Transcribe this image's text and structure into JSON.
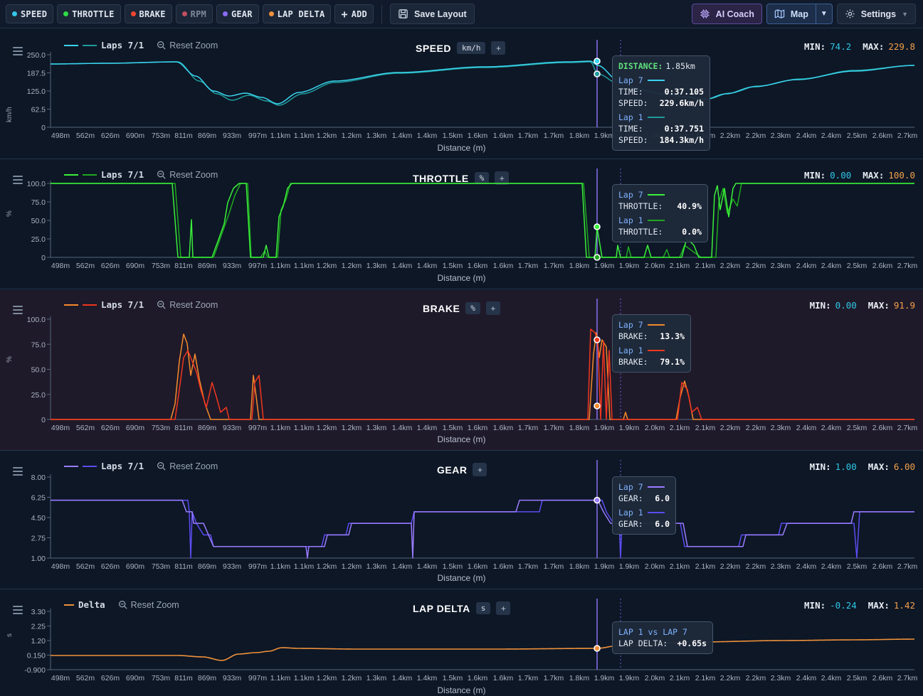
{
  "toolbar": {
    "chips": [
      {
        "id": "speed",
        "label": "SPEED",
        "color": "#33c6e8",
        "active": true
      },
      {
        "id": "throttle",
        "label": "THROTTLE",
        "color": "#2edc45",
        "active": true
      },
      {
        "id": "brake",
        "label": "BRAKE",
        "color": "#f5462f",
        "active": true
      },
      {
        "id": "rpm",
        "label": "RPM",
        "color": "#d05a6a",
        "active": false
      },
      {
        "id": "gear",
        "label": "GEAR",
        "color": "#8c6cf5",
        "active": true
      },
      {
        "id": "lapdelta",
        "label": "LAP DELTA",
        "color": "#f0913a",
        "active": true
      }
    ],
    "add_label": "ADD",
    "save_layout_label": "Save Layout",
    "ai_coach_label": "AI Coach",
    "map_label": "Map",
    "settings_label": "Settings"
  },
  "x_ticks": [
    "498m",
    "562m",
    "626m",
    "690m",
    "753m",
    "811m",
    "869m",
    "933m",
    "997m",
    "1.1km",
    "1.1km",
    "1.2km",
    "1.2km",
    "1.3km",
    "1.4km",
    "1.4km",
    "1.5km",
    "1.6km",
    "1.6km",
    "1.7km",
    "1.7km",
    "1.8km",
    "1.9km",
    "1.9km",
    "2.0km",
    "2.1km",
    "2.1km",
    "2.2km",
    "2.2km",
    "2.3km",
    "2.4km",
    "2.4km",
    "2.5km",
    "2.6km",
    "2.7km"
  ],
  "x_label": "Distance (m)",
  "reset_zoom_label": "Reset Zoom",
  "min_label": "MIN:",
  "max_label": "MAX:",
  "panels": {
    "speed": {
      "title": "SPEED",
      "unit": "km/h",
      "y_axis_label": "km/h",
      "legend": "Laps 7/1",
      "min": "74.2",
      "max": "229.8",
      "y_ticks": [
        "250.0",
        "187.5",
        "125.0",
        "62.5",
        "0"
      ],
      "tooltip": {
        "distance_label": "DISTANCE:",
        "distance": "1.85km",
        "lap_a": "Lap 7",
        "lap_b": "Lap 1",
        "time_label": "TIME:",
        "speed_label": "SPEED:",
        "a_time": "0:37.105",
        "a_speed": "229.6km/h",
        "b_time": "0:37.751",
        "b_speed": "184.3km/h"
      }
    },
    "throttle": {
      "title": "THROTTLE",
      "unit": "%",
      "y_axis_label": "%",
      "legend": "Laps 7/1",
      "min": "0.00",
      "max": "100.0",
      "y_ticks": [
        "100.0",
        "75.0",
        "50.0",
        "25.0",
        "0"
      ],
      "tooltip": {
        "lap_a": "Lap 7",
        "lap_b": "Lap 1",
        "label": "THROTTLE:",
        "a_val": "40.9%",
        "b_val": "0.0%"
      }
    },
    "brake": {
      "title": "BRAKE",
      "unit": "%",
      "y_axis_label": "%",
      "legend": "Laps 7/1",
      "min": "0.00",
      "max": "91.9",
      "y_ticks": [
        "100.0",
        "75.0",
        "50.0",
        "25.0",
        "0"
      ],
      "tooltip": {
        "lap_a": "Lap 7",
        "lap_b": "Lap 1",
        "label": "BRAKE:",
        "a_val": "13.3%",
        "b_val": "79.1%"
      }
    },
    "gear": {
      "title": "GEAR",
      "legend": "Laps 7/1",
      "min": "1.00",
      "max": "6.00",
      "y_ticks": [
        "8.00",
        "6.25",
        "4.50",
        "2.75",
        "1.00"
      ],
      "tooltip": {
        "lap_a": "Lap 7",
        "lap_b": "Lap 1",
        "label": "GEAR:",
        "a_val": "6.0",
        "b_val": "6.0"
      }
    },
    "delta": {
      "title": "LAP DELTA",
      "unit": "s",
      "y_axis_label": "s",
      "legend": "Delta",
      "min": "-0.24",
      "max": "1.42",
      "y_ticks": [
        "3.30",
        "2.25",
        "1.20",
        "0.150",
        "-0.900"
      ],
      "tooltip": {
        "title": "LAP 1 vs LAP 7",
        "label": "LAP DELTA:",
        "val": "+0.65s"
      }
    }
  },
  "colors": {
    "speed_a": "#3ad4ee",
    "speed_b": "#1f9a9a",
    "throttle_a": "#3bf03a",
    "throttle_b": "#1fa81f",
    "brake_a": "#f58a2c",
    "brake_b": "#f0361f",
    "gear_a": "#9a7cff",
    "gear_b": "#5b4cf0",
    "delta": "#f0913a",
    "cursor": "#8f77ff"
  }
}
